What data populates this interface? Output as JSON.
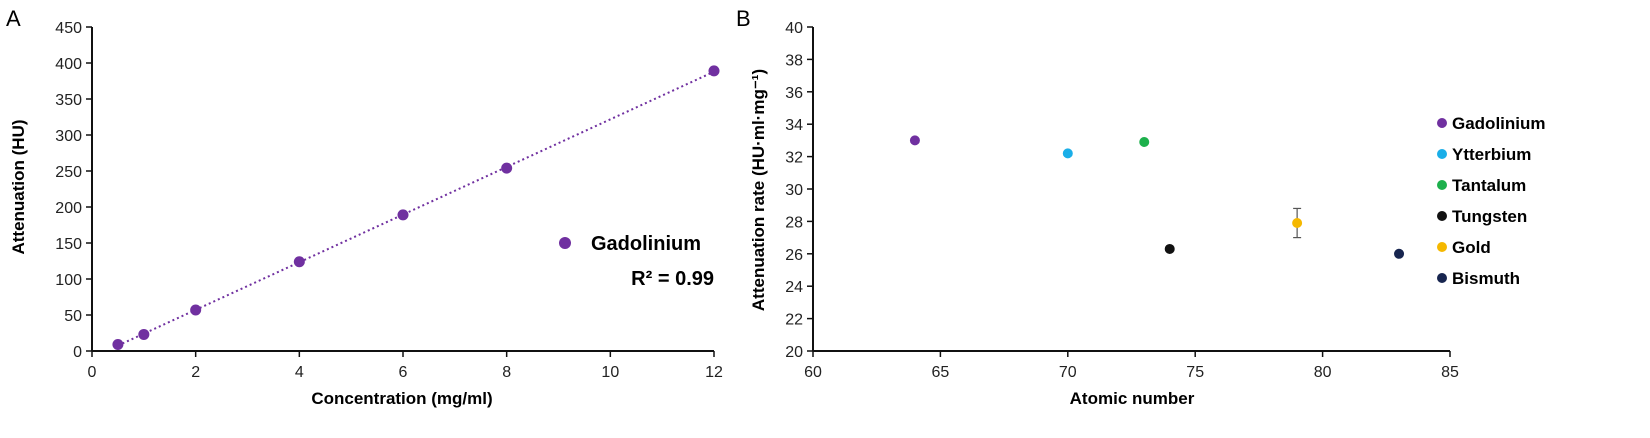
{
  "chart_data": [
    {
      "panel": "A",
      "type": "scatter",
      "xlabel": "Concentration (mg/ml)",
      "ylabel": "Attenuation (HU)",
      "xlim": [
        0,
        12
      ],
      "ylim": [
        0,
        450
      ],
      "xticks": [
        "0",
        "2",
        "4",
        "6",
        "8",
        "10",
        "12"
      ],
      "yticks": [
        "0",
        "50",
        "100",
        "150",
        "200",
        "250",
        "300",
        "350",
        "400",
        "450"
      ],
      "grid": false,
      "legend_position": "right",
      "trendline": "linear dotted",
      "annotation": "R² = 0.99",
      "series": [
        {
          "name": "Gadolinium",
          "color": "#7030a0",
          "x": [
            0.5,
            1,
            2,
            4,
            6,
            8,
            12
          ],
          "y": [
            9,
            23,
            57,
            124,
            189,
            254,
            389
          ]
        }
      ]
    },
    {
      "panel": "B",
      "type": "scatter",
      "xlabel": "Atomic number",
      "ylabel": "Attenuation rate (HU·ml·mg⁻¹)",
      "xlim": [
        60,
        85
      ],
      "ylim": [
        20,
        40
      ],
      "xticks": [
        "60",
        "65",
        "70",
        "75",
        "80",
        "85"
      ],
      "yticks": [
        "20",
        "22",
        "24",
        "26",
        "28",
        "30",
        "32",
        "34",
        "36",
        "38",
        "40"
      ],
      "grid": false,
      "legend_position": "right",
      "series": [
        {
          "name": "Gadolinium",
          "color": "#7030a0",
          "x": [
            64
          ],
          "y": [
            33.0
          ],
          "err": [
            0
          ]
        },
        {
          "name": "Ytterbium",
          "color": "#1aaee8",
          "x": [
            70
          ],
          "y": [
            32.2
          ],
          "err": [
            0
          ]
        },
        {
          "name": "Tantalum",
          "color": "#1db04c",
          "x": [
            73
          ],
          "y": [
            32.9
          ],
          "err": [
            0
          ]
        },
        {
          "name": "Tungsten",
          "color": "#111111",
          "x": [
            74
          ],
          "y": [
            26.3
          ],
          "err": [
            0
          ]
        },
        {
          "name": "Gold",
          "color": "#f5b800",
          "x": [
            79
          ],
          "y": [
            27.9
          ],
          "err": [
            0.9
          ]
        },
        {
          "name": "Bismuth",
          "color": "#17254f",
          "x": [
            83
          ],
          "y": [
            26.0
          ],
          "err": [
            0
          ]
        }
      ]
    }
  ]
}
